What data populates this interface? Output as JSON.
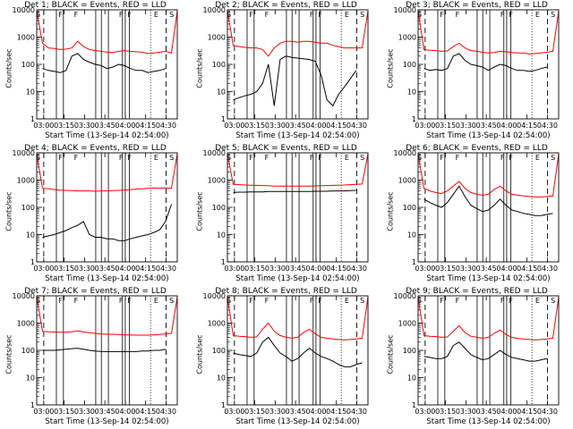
{
  "chart_data": [
    {
      "type": "line",
      "title": "Det 1; BLACK = Events, RED = LLD",
      "xlabel": "Start Time (13-Sep-14 02:54:00)",
      "ylabel": "Counts/sec",
      "yscale": "log",
      "ylim": [
        1,
        10000
      ],
      "xticks": [
        "03:00",
        "03:15",
        "03:30",
        "03:45",
        "04:00",
        "04:15",
        "04:30"
      ],
      "yticks": [
        "1",
        "10",
        "100",
        "1000",
        "10000"
      ],
      "flags": [
        "S",
        "F",
        "F",
        "F",
        "F",
        "E",
        "S"
      ],
      "series": [
        {
          "color": "#ff0000",
          "values": [
            9000,
            600,
            400,
            380,
            350,
            360,
            400,
            700,
            450,
            350,
            320,
            300,
            280,
            270,
            300,
            320,
            300,
            290,
            280,
            250,
            260,
            280,
            300,
            260,
            9000
          ]
        },
        {
          "color": "#000000",
          "values": [
            null,
            70,
            60,
            55,
            50,
            60,
            200,
            250,
            150,
            120,
            100,
            90,
            70,
            80,
            100,
            90,
            70,
            60,
            60,
            50,
            55,
            60,
            70,
            null,
            null
          ]
        }
      ]
    },
    {
      "type": "line",
      "title": "Det 2; BLACK = Events, RED = LLD",
      "xlabel": "Start Time (13-Sep-14 02:54:00)",
      "ylabel": "Counts/sec",
      "yscale": "log",
      "ylim": [
        1,
        10000
      ],
      "xticks": [
        "03:00",
        "03:15",
        "03:30",
        "03:45",
        "04:00",
        "04:15",
        "04:30"
      ],
      "yticks": [
        "1",
        "10",
        "100",
        "1000",
        "10000"
      ],
      "flags": [
        "S",
        "F",
        "F",
        "F",
        "F",
        "E",
        "S"
      ],
      "series": [
        {
          "color": "#ff0000",
          "values": [
            9000,
            500,
            450,
            420,
            400,
            400,
            350,
            200,
            400,
            600,
            700,
            700,
            650,
            700,
            700,
            650,
            600,
            600,
            500,
            450,
            400,
            400,
            400,
            400,
            9000
          ]
        },
        {
          "color": "#000000",
          "values": [
            null,
            5,
            6,
            7,
            8,
            10,
            20,
            100,
            3,
            150,
            200,
            180,
            170,
            160,
            150,
            130,
            40,
            5,
            3,
            8,
            15,
            30,
            60,
            null,
            null
          ]
        }
      ]
    },
    {
      "type": "line",
      "title": "Det 3; BLACK = Events, RED = LLD",
      "xlabel": "Start Time (13-Sep-14 02:54:00)",
      "ylabel": "Counts/sec",
      "yscale": "log",
      "ylim": [
        1,
        10000
      ],
      "xticks": [
        "03:00",
        "03:15",
        "03:30",
        "03:45",
        "04:00",
        "04:15",
        "04:30"
      ],
      "yticks": [
        "1",
        "10",
        "100",
        "1000",
        "10000"
      ],
      "flags": [
        "S",
        "F",
        "F",
        "F",
        "F",
        "E",
        "S"
      ],
      "series": [
        {
          "color": "#ff0000",
          "values": [
            9000,
            350,
            330,
            320,
            300,
            310,
            450,
            600,
            400,
            320,
            300,
            280,
            260,
            270,
            300,
            290,
            270,
            260,
            260,
            240,
            250,
            260,
            280,
            300,
            9000
          ]
        },
        {
          "color": "#000000",
          "values": [
            null,
            70,
            60,
            65,
            60,
            70,
            200,
            250,
            140,
            100,
            90,
            80,
            60,
            80,
            100,
            90,
            70,
            60,
            60,
            55,
            60,
            70,
            80,
            null,
            null
          ]
        }
      ]
    },
    {
      "type": "line",
      "title": "Det 4; BLACK = Events, RED = LLD",
      "xlabel": "Start Time (13-Sep-14 02:54:00)",
      "ylabel": "Counts/sec",
      "yscale": "log",
      "ylim": [
        1,
        10000
      ],
      "xticks": [
        "03:00",
        "03:15",
        "03:30",
        "03:45",
        "04:00",
        "04:15",
        "04:30"
      ],
      "yticks": [
        "1",
        "10",
        "100",
        "1000",
        "10000"
      ],
      "flags": [
        "S",
        "F",
        "F",
        "F",
        "F",
        "E",
        "S"
      ],
      "series": [
        {
          "color": "#ff0000",
          "values": [
            9000,
            500,
            480,
            450,
            430,
            420,
            410,
            400,
            400,
            400,
            390,
            400,
            400,
            410,
            420,
            430,
            450,
            470,
            480,
            500,
            520,
            500,
            520,
            500,
            9000
          ]
        },
        {
          "color": "#000000",
          "values": [
            null,
            8,
            9,
            10,
            12,
            14,
            18,
            22,
            30,
            10,
            8,
            8,
            7,
            7,
            6,
            6,
            7,
            8,
            9,
            10,
            12,
            15,
            30,
            130,
            null
          ]
        }
      ]
    },
    {
      "type": "line",
      "title": "Det 5; BLACK = Events, RED = LLD",
      "xlabel": "Start Time (13-Sep-14 02:54:00)",
      "ylabel": "Counts/sec",
      "yscale": "log",
      "ylim": [
        1,
        10000
      ],
      "xticks": [
        "03:00",
        "03:15",
        "03:30",
        "03:45",
        "04:00",
        "04:15",
        "04:30"
      ],
      "yticks": [
        "1",
        "10",
        "100",
        "1000",
        "10000"
      ],
      "flags": [
        "S",
        "F",
        "F",
        "F",
        "F",
        "E",
        "S"
      ],
      "series": [
        {
          "color": "#ff0000",
          "values": [
            9000,
            700,
            680,
            660,
            650,
            640,
            630,
            620,
            600,
            600,
            600,
            600,
            600,
            600,
            600,
            610,
            620,
            630,
            640,
            650,
            660,
            680,
            700,
            720,
            9000
          ]
        },
        {
          "color": "#000000",
          "values": [
            null,
            350,
            360,
            360,
            370,
            370,
            370,
            380,
            380,
            380,
            380,
            380,
            380,
            380,
            380,
            390,
            390,
            390,
            400,
            400,
            400,
            410,
            420,
            null,
            null
          ]
        }
      ]
    },
    {
      "type": "line",
      "title": "Det 6; BLACK = Events, RED = LLD",
      "xlabel": "Start Time (13-Sep-14 02:54:00)",
      "ylabel": "Counts/sec",
      "yscale": "log",
      "ylim": [
        1,
        10000
      ],
      "xticks": [
        "03:00",
        "03:15",
        "03:30",
        "03:45",
        "04:00",
        "04:15",
        "04:30"
      ],
      "yticks": [
        "1",
        "10",
        "100",
        "1000",
        "10000"
      ],
      "flags": [
        "S",
        "F",
        "F",
        "F",
        "F",
        "E",
        "S"
      ],
      "series": [
        {
          "color": "#ff0000",
          "values": [
            9000,
            500,
            400,
            350,
            320,
            400,
            600,
            900,
            500,
            350,
            300,
            280,
            300,
            450,
            600,
            400,
            300,
            280,
            260,
            250,
            240,
            240,
            250,
            260,
            9000
          ]
        },
        {
          "color": "#000000",
          "values": [
            null,
            200,
            150,
            120,
            100,
            150,
            300,
            600,
            250,
            120,
            90,
            70,
            80,
            120,
            200,
            120,
            80,
            70,
            60,
            55,
            50,
            50,
            55,
            60,
            null
          ]
        }
      ]
    },
    {
      "type": "line",
      "title": "Det 7; BLACK = Events, RED = LLD",
      "xlabel": "Start Time (13-Sep-14 02:54:00)",
      "ylabel": "Counts/sec",
      "yscale": "log",
      "ylim": [
        1,
        10000
      ],
      "xticks": [
        "03:00",
        "03:15",
        "03:30",
        "03:45",
        "04:00",
        "04:15",
        "04:30"
      ],
      "yticks": [
        "1",
        "10",
        "100",
        "1000",
        "10000"
      ],
      "flags": [
        "S",
        "F",
        "F",
        "F",
        "F",
        "E",
        "S"
      ],
      "series": [
        {
          "color": "#ff0000",
          "values": [
            9000,
            500,
            480,
            470,
            460,
            460,
            480,
            520,
            480,
            440,
            420,
            400,
            390,
            390,
            380,
            370,
            370,
            360,
            360,
            360,
            370,
            380,
            400,
            420,
            9000
          ]
        },
        {
          "color": "#000000",
          "values": [
            null,
            100,
            100,
            100,
            105,
            110,
            115,
            120,
            110,
            100,
            95,
            90,
            90,
            90,
            90,
            90,
            90,
            90,
            95,
            95,
            100,
            100,
            110,
            null,
            null
          ]
        }
      ]
    },
    {
      "type": "line",
      "title": "Det 8; BLACK = Events, RED = LLD",
      "xlabel": "Start Time (13-Sep-14 02:54:00)",
      "ylabel": "Counts/sec",
      "yscale": "log",
      "ylim": [
        1,
        10000
      ],
      "xticks": [
        "03:00",
        "03:15",
        "03:30",
        "03:45",
        "04:00",
        "04:15",
        "04:30"
      ],
      "yticks": [
        "1",
        "10",
        "100",
        "1000",
        "10000"
      ],
      "flags": [
        "S",
        "F",
        "F",
        "F",
        "F",
        "E",
        "S"
      ],
      "series": [
        {
          "color": "#ff0000",
          "values": [
            9000,
            350,
            330,
            320,
            300,
            310,
            600,
            1000,
            500,
            350,
            300,
            280,
            300,
            450,
            600,
            400,
            300,
            280,
            260,
            250,
            240,
            250,
            260,
            280,
            9000
          ]
        },
        {
          "color": "#000000",
          "values": [
            null,
            80,
            70,
            65,
            60,
            80,
            200,
            300,
            150,
            80,
            60,
            40,
            50,
            80,
            120,
            80,
            60,
            50,
            40,
            30,
            25,
            25,
            30,
            35,
            null
          ]
        }
      ]
    },
    {
      "type": "line",
      "title": "Det 9; BLACK = Events, RED = LLD",
      "xlabel": "Start Time (13-Sep-14 02:54:00)",
      "ylabel": "Counts/sec",
      "yscale": "log",
      "ylim": [
        1,
        10000
      ],
      "xticks": [
        "03:00",
        "03:15",
        "03:30",
        "03:45",
        "04:00",
        "04:15",
        "04:30"
      ],
      "yticks": [
        "1",
        "10",
        "100",
        "1000",
        "10000"
      ],
      "flags": [
        "S",
        "F",
        "F",
        "F",
        "F",
        "E",
        "S"
      ],
      "series": [
        {
          "color": "#ff0000",
          "values": [
            9000,
            350,
            330,
            320,
            300,
            310,
            500,
            800,
            450,
            330,
            300,
            280,
            300,
            420,
            550,
            380,
            300,
            270,
            260,
            250,
            240,
            250,
            260,
            280,
            9000
          ]
        },
        {
          "color": "#000000",
          "values": [
            null,
            60,
            55,
            50,
            50,
            60,
            150,
            200,
            120,
            70,
            55,
            45,
            50,
            70,
            100,
            70,
            55,
            50,
            45,
            40,
            40,
            45,
            50,
            null,
            null
          ]
        }
      ]
    }
  ]
}
